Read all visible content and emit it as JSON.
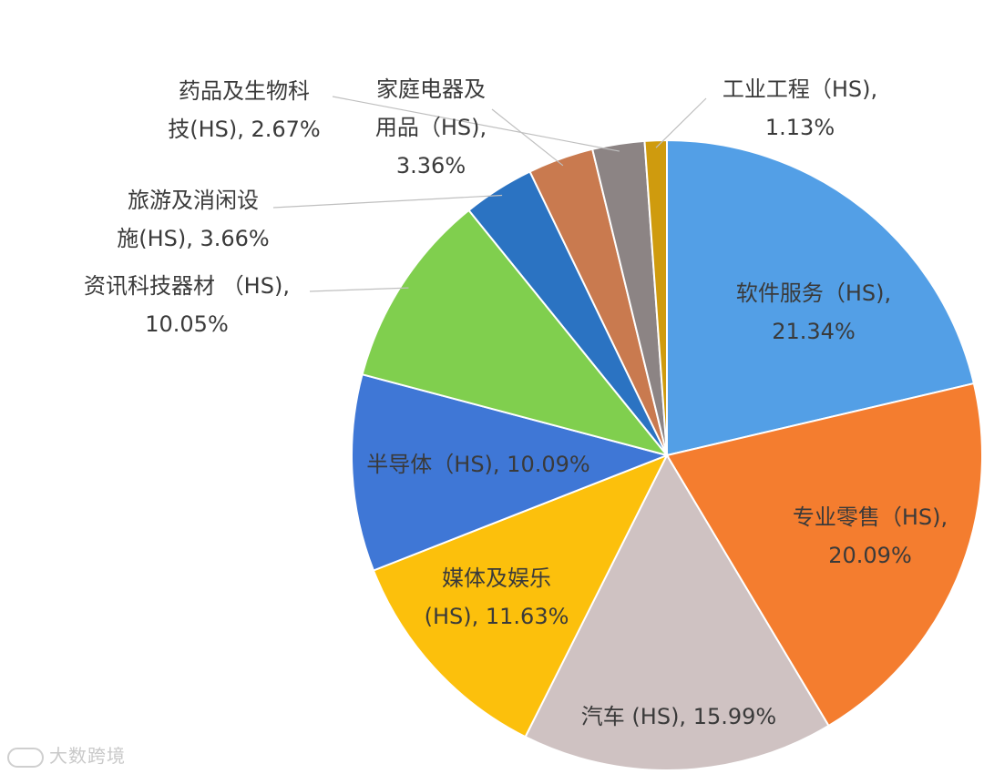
{
  "chart_data": {
    "type": "pie",
    "title": "",
    "slices": [
      {
        "label_lines": [
          "软件服务（HS),",
          "21.34%"
        ],
        "category": "软件服务 (HS)",
        "value": 21.34,
        "color": "#539FE6"
      },
      {
        "label_lines": [
          "专业零售（HS),",
          "20.09%"
        ],
        "category": "专业零售 (HS)",
        "value": 20.09,
        "color": "#F47D2F"
      },
      {
        "label_lines": [
          "汽车 (HS), 15.99%"
        ],
        "category": "汽车 (HS)",
        "value": 15.99,
        "color": "#CFC2C2"
      },
      {
        "label_lines": [
          "媒体及娱乐",
          "(HS), 11.63%"
        ],
        "category": "媒体及娱乐 (HS)",
        "value": 11.63,
        "color": "#FCC00C"
      },
      {
        "label_lines": [
          "半导体（HS), 10.09%"
        ],
        "category": "半导体 (HS)",
        "value": 10.09,
        "color": "#3F77D6"
      },
      {
        "label_lines": [
          "资讯科技器材 （HS),",
          "10.05%"
        ],
        "category": "资讯科技器材 (HS)",
        "value": 10.05,
        "color": "#80CF4E"
      },
      {
        "label_lines": [
          "旅游及消闲设",
          "施(HS), 3.66%"
        ],
        "category": "旅游及消闲设施 (HS)",
        "value": 3.66,
        "color": "#2B73C2"
      },
      {
        "label_lines": [
          "家庭电器及",
          "用品（HS),",
          "3.36%"
        ],
        "category": "家庭电器及用品 (HS)",
        "value": 3.36,
        "color": "#C97A4F"
      },
      {
        "label_lines": [
          "药品及生物科",
          "技(HS), 2.67%"
        ],
        "category": "药品及生物科技 (HS)",
        "value": 2.67,
        "color": "#8C8484"
      },
      {
        "label_lines": [
          "工业工程（HS),",
          "1.13%"
        ],
        "category": "工业工程 (HS)",
        "value": 1.13,
        "color": "#CF9B0E"
      }
    ],
    "legend": "none"
  },
  "watermark": {
    "text": "大数跨境"
  }
}
